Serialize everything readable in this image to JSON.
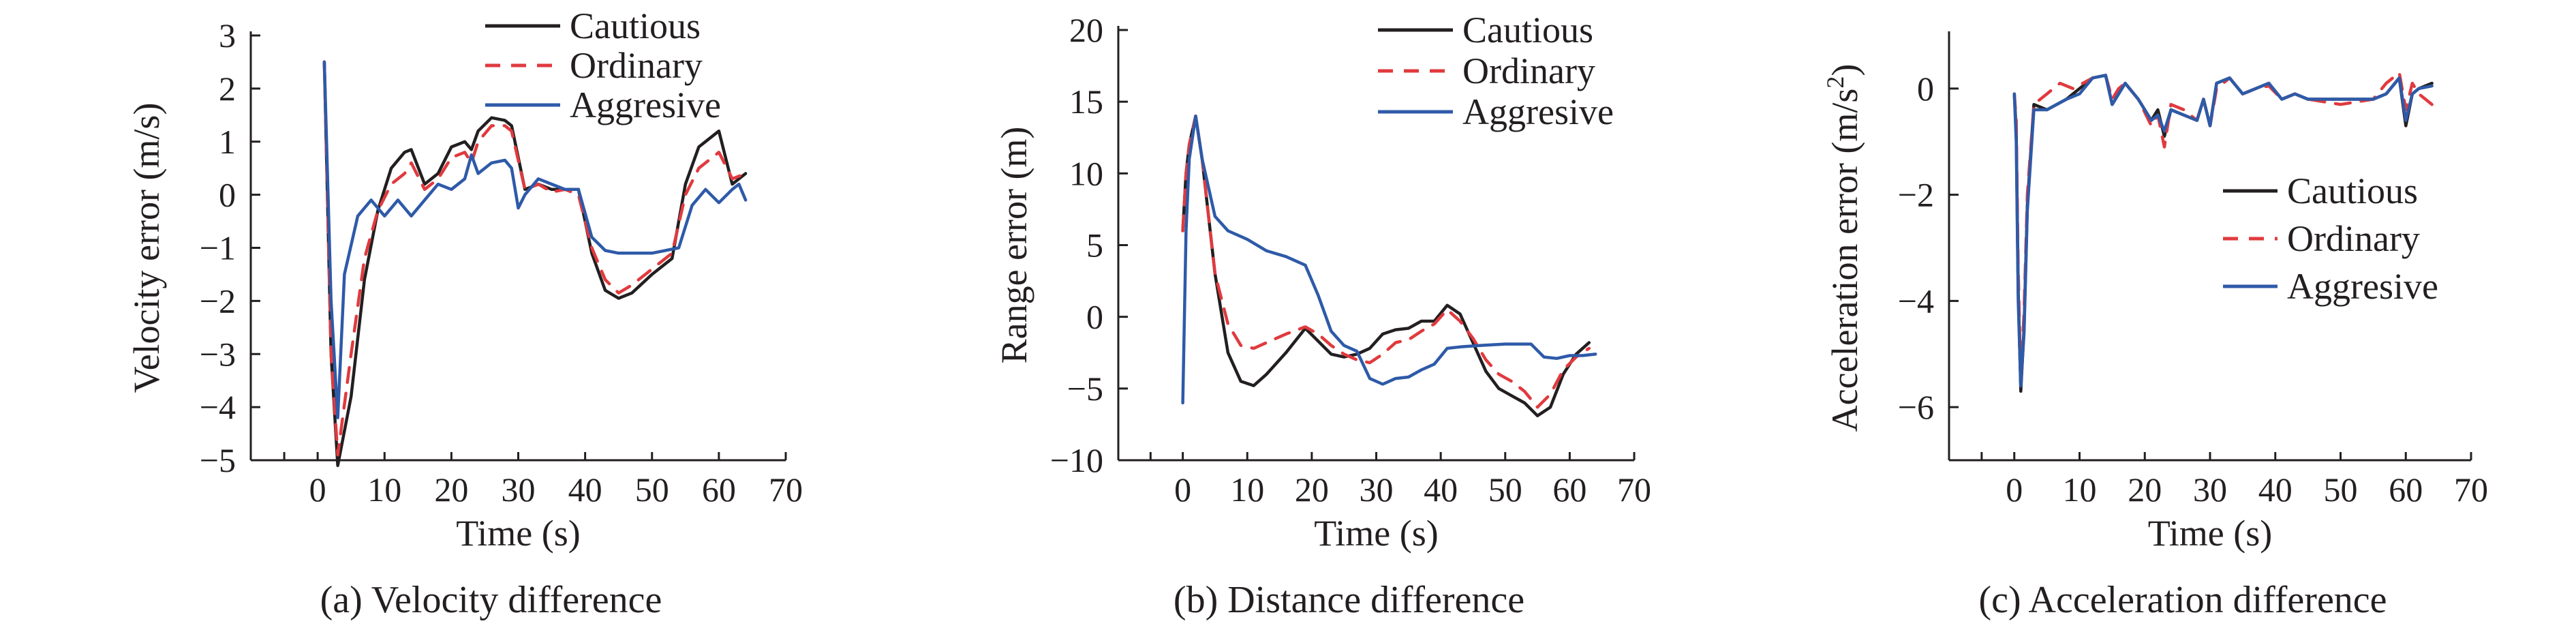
{
  "charts": [
    {
      "type": "line",
      "caption": "(a) Velocity difference",
      "xlabel": "Time (s)",
      "ylabel": "Velocity error (m/s)",
      "xlim": [
        -10,
        70
      ],
      "ylim": [
        -5,
        3
      ],
      "xticks": [
        "0",
        "10",
        "20",
        "30",
        "40",
        "50",
        "60",
        "70"
      ],
      "yticks": [
        "3",
        "2",
        "1",
        "0",
        "−1",
        "−2",
        "−3",
        "−4",
        "−5"
      ],
      "legend": [
        "Cautious",
        "Ordinary",
        "Aggresive"
      ],
      "legend_position": "top-right",
      "series": [
        {
          "name": "Cautious",
          "color": "#231f20",
          "style": "solid",
          "x": [
            1,
            2,
            3,
            5,
            7,
            9,
            11,
            13,
            14,
            16,
            18,
            20,
            22,
            23,
            24,
            26,
            28,
            29,
            31,
            33,
            35,
            37,
            39,
            41,
            43,
            45,
            47,
            50,
            53,
            55,
            57,
            60,
            62,
            64
          ],
          "y": [
            2.5,
            -3,
            -5.1,
            -3.8,
            -1.6,
            -0.3,
            0.5,
            0.8,
            0.85,
            0.2,
            0.4,
            0.9,
            1.0,
            0.85,
            1.2,
            1.45,
            1.4,
            1.3,
            0.1,
            0.2,
            0.1,
            0.1,
            0.1,
            -1.1,
            -1.8,
            -1.95,
            -1.85,
            -1.5,
            -1.2,
            0.2,
            0.9,
            1.2,
            0.2,
            0.4
          ]
        },
        {
          "name": "Ordinary",
          "color": "#e03a3e",
          "style": "dashed",
          "x": [
            1,
            2,
            3,
            5,
            7,
            9,
            11,
            13,
            14,
            16,
            18,
            20,
            22,
            23,
            24,
            26,
            28,
            29,
            31,
            33,
            35,
            37,
            39,
            41,
            43,
            45,
            47,
            50,
            53,
            55,
            57,
            60,
            62,
            64
          ],
          "y": [
            2.5,
            -3,
            -4.9,
            -3.0,
            -1.2,
            -0.3,
            0.2,
            0.4,
            0.6,
            0.1,
            0.3,
            0.7,
            0.8,
            0.6,
            1.0,
            1.3,
            1.3,
            1.2,
            0.1,
            0.2,
            0.05,
            0.1,
            0.0,
            -1.0,
            -1.6,
            -1.85,
            -1.7,
            -1.4,
            -1.1,
            0.0,
            0.5,
            0.8,
            0.3,
            0.4
          ]
        },
        {
          "name": "Aggresive",
          "color": "#2e5aa8",
          "style": "solid",
          "x": [
            1,
            2,
            3,
            4,
            6,
            8,
            10,
            12,
            14,
            16,
            18,
            20,
            22,
            23,
            24,
            26,
            28,
            29,
            30,
            31,
            33,
            35,
            37,
            39,
            41,
            43,
            45,
            50,
            54,
            56,
            58,
            60,
            62,
            63,
            64
          ],
          "y": [
            2.5,
            -2,
            -4.2,
            -1.5,
            -0.4,
            -0.1,
            -0.4,
            -0.1,
            -0.4,
            -0.1,
            0.2,
            0.1,
            0.3,
            0.75,
            0.4,
            0.6,
            0.65,
            0.5,
            -0.25,
            0.0,
            0.3,
            0.2,
            0.1,
            0.1,
            -0.8,
            -1.05,
            -1.1,
            -1.1,
            -1.0,
            -0.2,
            0.1,
            -0.15,
            0.1,
            0.2,
            -0.1
          ]
        }
      ]
    },
    {
      "type": "line",
      "caption": "(b) Distance difference",
      "xlabel": "Time (s)",
      "ylabel": "Range error (m)",
      "xlim": [
        -10,
        70
      ],
      "ylim": [
        -10,
        20
      ],
      "xticks": [
        "0",
        "10",
        "20",
        "30",
        "40",
        "50",
        "60",
        "70"
      ],
      "yticks": [
        "20",
        "15",
        "10",
        "5",
        "0",
        "−5",
        "−10"
      ],
      "legend": [
        "Cautious",
        "Ordinary",
        "Aggresive"
      ],
      "legend_position": "top-right",
      "series": [
        {
          "name": "Cautious",
          "color": "#231f20",
          "style": "solid",
          "x": [
            0,
            0.5,
            1,
            2,
            3,
            5,
            7,
            9,
            11,
            13,
            16,
            19,
            21,
            23,
            25,
            27,
            29,
            31,
            33,
            35,
            37,
            39,
            41,
            43,
            45,
            47,
            49,
            51,
            53,
            55,
            57,
            59,
            61,
            63
          ],
          "y": [
            6,
            10,
            12,
            14,
            11,
            3,
            -2.5,
            -4.5,
            -4.8,
            -4,
            -2.5,
            -0.8,
            -1.7,
            -2.6,
            -2.8,
            -2.6,
            -2.2,
            -1.2,
            -0.9,
            -0.8,
            -0.3,
            -0.3,
            0.8,
            0.2,
            -1.8,
            -3.8,
            -5,
            -5.5,
            -6,
            -6.9,
            -6.3,
            -4,
            -2.6,
            -1.8
          ]
        },
        {
          "name": "Ordinary",
          "color": "#e03a3e",
          "style": "dashed",
          "x": [
            0,
            0.5,
            1,
            2,
            3,
            5,
            7,
            9,
            11,
            13,
            16,
            19,
            21,
            23,
            25,
            27,
            29,
            31,
            33,
            35,
            37,
            39,
            41,
            43,
            45,
            47,
            49,
            51,
            53,
            55,
            57,
            59,
            61,
            63
          ],
          "y": [
            6,
            10,
            12,
            14,
            11,
            3,
            -0.5,
            -2,
            -2.2,
            -1.8,
            -1.2,
            -0.7,
            -1.2,
            -2,
            -2.6,
            -3,
            -3.2,
            -2.6,
            -1.8,
            -1.6,
            -1.0,
            -0.5,
            0.5,
            -0.3,
            -1.5,
            -3,
            -4,
            -4.5,
            -5.2,
            -6.3,
            -5.4,
            -3.7,
            -2.8,
            -2.2
          ]
        },
        {
          "name": "Aggresive",
          "color": "#2e5aa8",
          "style": "solid",
          "x": [
            0,
            0.5,
            1,
            2,
            3,
            5,
            7,
            10,
            13,
            16,
            19,
            21,
            23,
            25,
            27,
            29,
            31,
            33,
            35,
            37,
            39,
            41,
            43,
            46,
            50,
            54,
            56,
            58,
            60,
            62,
            64
          ],
          "y": [
            -6,
            6,
            11,
            14,
            11,
            7,
            6,
            5.4,
            4.6,
            4.2,
            3.6,
            1.5,
            -1,
            -2,
            -2.4,
            -4.3,
            -4.7,
            -4.3,
            -4.2,
            -3.7,
            -3.3,
            -2.2,
            -2.1,
            -2,
            -1.9,
            -1.9,
            -2.8,
            -2.9,
            -2.7,
            -2.7,
            -2.6
          ]
        }
      ]
    },
    {
      "type": "line",
      "caption": "(c) Acceleration difference",
      "xlabel": "Time (s)",
      "ylabel": "Acceleration error (m/s",
      "ylabel_sup": "2",
      "ylabel_end": ")",
      "xlim": [
        -10,
        70
      ],
      "ylim": [
        -7,
        1
      ],
      "xticks": [
        "0",
        "10",
        "20",
        "30",
        "40",
        "50",
        "60",
        "70"
      ],
      "yticks": [
        "0",
        "−2",
        "−4",
        "−6"
      ],
      "ytick_values": [
        0,
        -2,
        -4,
        -6
      ],
      "legend": [
        "Cautious",
        "Ordinary",
        "Aggresive"
      ],
      "legend_position": "center-right",
      "series": [
        {
          "name": "Cautious",
          "color": "#231f20",
          "style": "solid",
          "x": [
            0,
            0.3,
            0.6,
            1.0,
            1.5,
            2.0,
            3,
            5,
            8,
            10,
            12,
            14,
            15,
            16,
            17,
            19,
            21,
            22,
            23,
            24,
            26,
            28,
            29,
            30,
            31,
            33,
            35,
            37,
            39,
            41,
            43,
            45,
            50,
            55,
            57,
            59,
            60,
            61,
            62,
            64
          ],
          "y": [
            -0.1,
            -0.8,
            -3.8,
            -5.7,
            -4.5,
            -2.2,
            -0.3,
            -0.4,
            -0.2,
            0.0,
            0.2,
            0.25,
            -0.3,
            -0.1,
            0.1,
            -0.2,
            -0.6,
            -0.4,
            -0.9,
            -0.4,
            -0.5,
            -0.6,
            -0.2,
            -0.7,
            0.1,
            0.2,
            -0.1,
            0.0,
            0.1,
            -0.2,
            -0.1,
            -0.2,
            -0.2,
            -0.2,
            -0.1,
            0.2,
            -0.7,
            -0.1,
            0.0,
            0.1
          ]
        },
        {
          "name": "Ordinary",
          "color": "#e03a3e",
          "style": "dashed",
          "x": [
            0,
            0.3,
            0.6,
            1.0,
            1.5,
            2.0,
            3,
            5,
            7,
            9,
            12,
            14,
            15,
            16,
            17,
            19,
            21,
            22,
            23,
            24,
            26,
            28,
            29,
            30,
            31,
            33,
            35,
            37,
            39,
            41,
            43,
            45,
            50,
            55,
            57,
            59,
            60,
            61,
            62,
            64
          ],
          "y": [
            -0.1,
            -0.6,
            -3.4,
            -5.5,
            -4.2,
            -2.0,
            -0.3,
            -0.1,
            0.1,
            0.0,
            0.2,
            0.25,
            -0.2,
            0.0,
            0.1,
            -0.2,
            -0.7,
            -0.5,
            -1.1,
            -0.3,
            -0.4,
            -0.6,
            -0.2,
            -0.7,
            0.0,
            0.2,
            -0.1,
            0.0,
            0.05,
            -0.2,
            -0.1,
            -0.2,
            -0.3,
            -0.2,
            0.1,
            0.3,
            -0.4,
            0.1,
            -0.1,
            -0.3
          ]
        },
        {
          "name": "Aggresive",
          "color": "#2e5aa8",
          "style": "solid",
          "x": [
            0,
            0.3,
            0.6,
            1.0,
            1.5,
            2.0,
            3,
            5,
            8,
            10,
            12,
            14,
            15,
            16,
            17,
            19,
            21,
            22,
            23,
            24,
            26,
            28,
            29,
            30,
            31,
            33,
            35,
            37,
            39,
            41,
            43,
            45,
            50,
            55,
            57,
            59,
            60,
            61,
            62,
            64
          ],
          "y": [
            -0.1,
            -1.0,
            -4.0,
            -5.6,
            -4.6,
            -2.3,
            -0.4,
            -0.4,
            -0.2,
            -0.1,
            0.2,
            0.25,
            -0.3,
            -0.1,
            0.1,
            -0.2,
            -0.6,
            -0.5,
            -0.8,
            -0.4,
            -0.5,
            -0.6,
            -0.2,
            -0.7,
            0.1,
            0.2,
            -0.1,
            0.0,
            0.1,
            -0.2,
            -0.1,
            -0.2,
            -0.2,
            -0.2,
            -0.1,
            0.2,
            -0.6,
            -0.1,
            0.0,
            0.05
          ]
        }
      ]
    }
  ]
}
